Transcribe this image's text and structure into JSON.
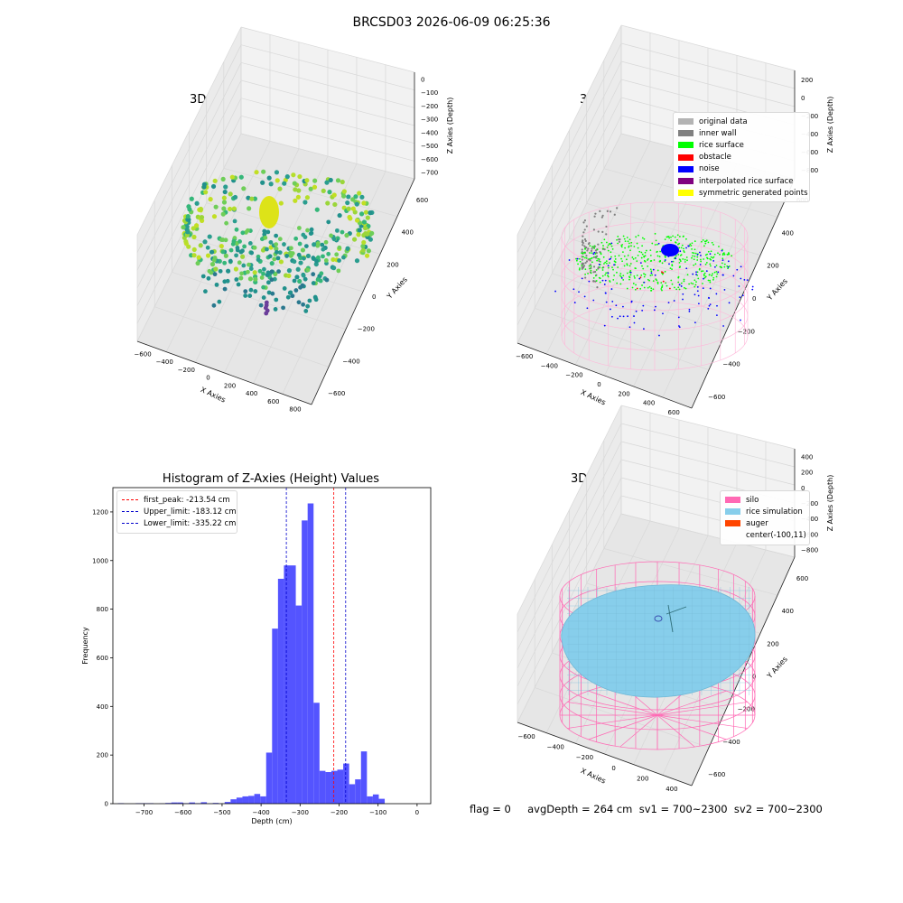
{
  "suptitle": "BRCSD03 2026-06-09 06:25:36",
  "colors": {
    "original_data": "#b3b3b3",
    "inner_wall": "#808080",
    "rice_surface": "#00ff00",
    "obstacle": "#ff0000",
    "noise": "#0000ff",
    "interpolated": "#800080",
    "symmetric": "#ffff00",
    "silo": "#ff69b4",
    "rice_simulation": "#87ceeb",
    "auger": "#ff4500",
    "hist_bar": "#4b4bff",
    "peak_line": "#ff0000",
    "limit_line": "#0000cc",
    "pane": "#f2f2f2",
    "grid": "#d8d8d8"
  },
  "plot1": {
    "title": "3D Plot of Silo Interior(row data)",
    "xlabel": "X Axies",
    "ylabel": "Y Axies",
    "zlabel": "Z Axies (Depth)",
    "xticks": [
      "−600",
      "−400",
      "−200",
      "0",
      "200",
      "400",
      "600",
      "800"
    ],
    "yticks": [
      "−600",
      "−400",
      "−200",
      "0",
      "200",
      "400",
      "600"
    ],
    "zticks": [
      "0",
      "−100",
      "−200",
      "−300",
      "−400",
      "−500",
      "−600",
      "−700"
    ]
  },
  "plot2": {
    "title": "3D classify of Silo Interior",
    "xlabel": "X Axies",
    "ylabel": "Y Axies",
    "zlabel": "Z Axies (Depth)",
    "xticks": [
      "−600",
      "−400",
      "−200",
      "0",
      "200",
      "400",
      "600"
    ],
    "yticks": [
      "−600",
      "−400",
      "−200",
      "0",
      "200",
      "400",
      "600"
    ],
    "zticks": [
      "200",
      "0",
      "−200",
      "−400",
      "−600",
      "−800"
    ],
    "legend": [
      "original data",
      "inner wall",
      "rice surface",
      "obstacle",
      "noise",
      "interpolated rice surface",
      "symmetric generated points"
    ]
  },
  "plot4": {
    "title": "3D simulation of Silo Interior",
    "xlabel": "X Axies",
    "ylabel": "Y Axies",
    "zlabel": "Z Axies (Depth)",
    "xticks": [
      "−600",
      "−400",
      "−200",
      "0",
      "200",
      "400"
    ],
    "yticks": [
      "−600",
      "−400",
      "−200",
      "0",
      "200",
      "400",
      "600"
    ],
    "zticks": [
      "400",
      "200",
      "0",
      "−200",
      "−400",
      "−600",
      "−800"
    ],
    "legend": [
      "silo",
      "rice simulation",
      "auger",
      "center(-100,11)"
    ]
  },
  "footer": "flag = 0     avgDepth = 264 cm  sv1 = 700~2300  sv2 = 700~2300",
  "chart_data": {
    "type": "bar",
    "title": "Histogram of Z-Axies (Height) Values",
    "xlabel": "Depth (cm)",
    "ylabel": "Frequency",
    "xlim": [
      -780,
      35
    ],
    "ylim": [
      0,
      1300
    ],
    "xticks": [
      "−700",
      "−600",
      "−500",
      "−400",
      "−300",
      "−200",
      "−100",
      "0"
    ],
    "yticks": [
      "0",
      "200",
      "400",
      "600",
      "800",
      "1000",
      "1200"
    ],
    "bin_width": 15.2,
    "bin_start": -767,
    "values": [
      2,
      0,
      0,
      2,
      2,
      2,
      0,
      1,
      3,
      5,
      5,
      2,
      5,
      2,
      6,
      1,
      3,
      1,
      7,
      18,
      25,
      30,
      32,
      40,
      30,
      210,
      720,
      925,
      980,
      980,
      815,
      1165,
      1235,
      415,
      135,
      130,
      135,
      140,
      165,
      80,
      100,
      215,
      30,
      38,
      20
    ],
    "lines": [
      {
        "label": "first_peak: -213.54 cm",
        "x": -213.54,
        "color": "red"
      },
      {
        "label": "Upper_limit: -183.12 cm",
        "x": -183.12,
        "color": "blue"
      },
      {
        "label": "Lower_limit: -335.22 cm",
        "x": -335.22,
        "color": "blue"
      }
    ]
  }
}
